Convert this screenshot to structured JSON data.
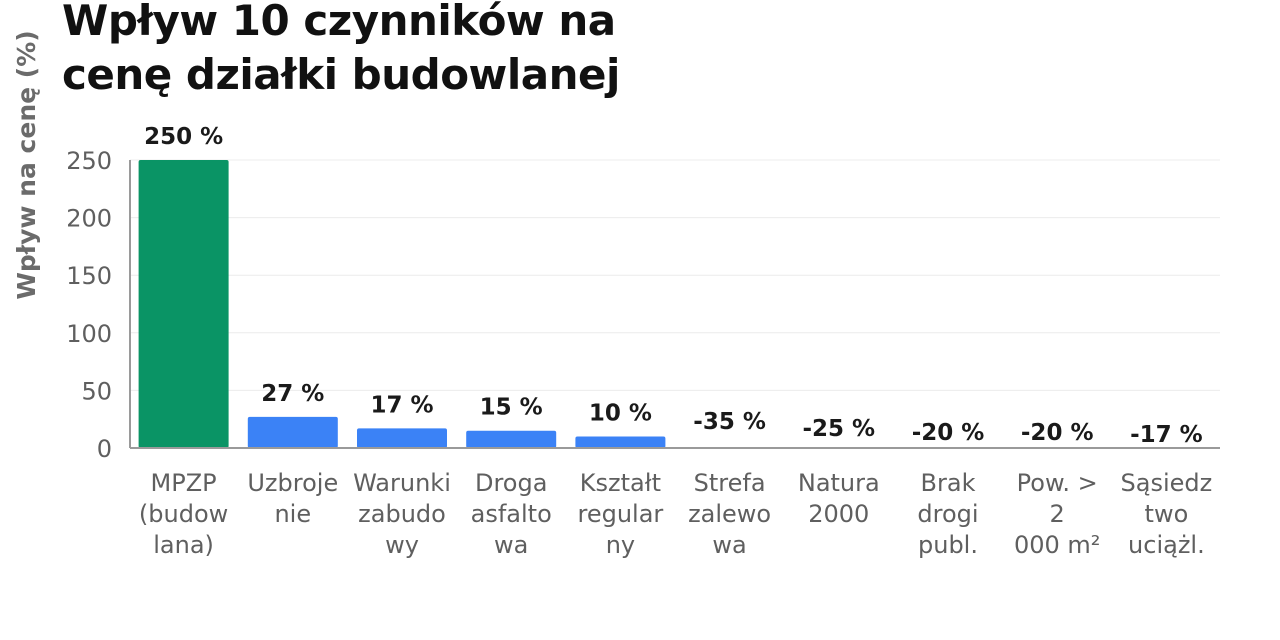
{
  "chart_data": {
    "type": "bar",
    "title": "Wpływ 10 czynników na cenę działki budowlanej",
    "title_lines": [
      "Wpływ 10 czynników na",
      "cenę działki budowlanej"
    ],
    "ylabel": "Wpływ na cenę (%)",
    "xlabel": "",
    "ylim": [
      0,
      250
    ],
    "yticks": [
      0,
      50,
      100,
      150,
      200,
      250
    ],
    "grid": true,
    "legend": "none",
    "categories": [
      "MPZP (budowlana)",
      "Uzbrojenie",
      "Warunki zabudowy",
      "Droga asfaltowa",
      "Kształt regularny",
      "Strefa zalewowa",
      "Natura 2000",
      "Brak drogi publ.",
      "Pow. > 2 000 m²",
      "Sąsiedztwo uciążl."
    ],
    "category_lines": [
      [
        "MPZP",
        "(budow",
        "lana)"
      ],
      [
        "Uzbroje",
        "nie"
      ],
      [
        "Warunki",
        "zabudo",
        "wy"
      ],
      [
        "Droga",
        "asfalto",
        "wa"
      ],
      [
        "Kształt",
        "regular",
        "ny"
      ],
      [
        "Strefa",
        "zalewo",
        "wa"
      ],
      [
        "Natura",
        "2000"
      ],
      [
        "Brak",
        "drogi",
        "publ."
      ],
      [
        "Pow. >",
        "2",
        "000 m²"
      ],
      [
        "Sąsiedz",
        "two",
        "uciążl."
      ]
    ],
    "values": [
      250,
      27,
      17,
      15,
      10,
      -35,
      -25,
      -20,
      -20,
      -17
    ],
    "data_labels": [
      "250 %",
      "27 %",
      "17 %",
      "15 %",
      "10 %",
      "-35 %",
      "-25 %",
      "-20 %",
      "-20 %",
      "-17 %"
    ],
    "colors": {
      "highlight": "#0a9465",
      "positive": "#3b82f6",
      "negative": "#ef4444"
    }
  }
}
